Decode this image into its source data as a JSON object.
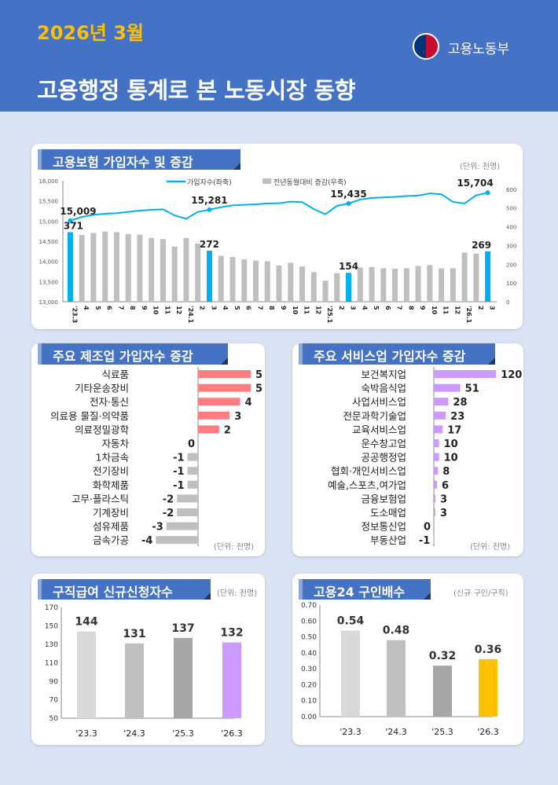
{
  "header": {
    "year": "2026년 3월",
    "title": "고용행정 통계로 본 노동시장 동향",
    "ministry": "고용노동부",
    "logo_icon": "taegeuk-emblem-icon"
  },
  "colors": {
    "header": "#4472c4",
    "year": "#ffc000",
    "line": "#00b0f0",
    "bar_gray": "#bfbfbf",
    "bar_highlight": "#00b0f0",
    "manufacturing_pos": "#ff7c80",
    "services_pos": "#cc99ff",
    "highlight_purple": "#cc99ff",
    "highlight_yellow": "#ffc000"
  },
  "chart_data": [
    {
      "type": "bar+line",
      "title": "고용보험 가입자수 및 증감",
      "unit": "(단위: 천명)",
      "legend": {
        "line": "가입자수(좌축)",
        "bar": "전년동월대비 증감(우축)"
      },
      "categories": [
        "'23.3",
        "4",
        "5",
        "6",
        "7",
        "8",
        "9",
        "10",
        "11",
        "12",
        "'24.1",
        "2",
        "3",
        "4",
        "5",
        "6",
        "7",
        "8",
        "9",
        "10",
        "11",
        "12",
        "'25.1",
        "2",
        "3",
        "4",
        "5",
        "6",
        "7",
        "8",
        "9",
        "10",
        "11",
        "12",
        "'26.1",
        "2",
        "3"
      ],
      "series": [
        {
          "name": "가입자수(좌축)",
          "axis": "left",
          "values": [
            15009,
            15102,
            15155,
            15181,
            15194,
            15227,
            15259,
            15279,
            15292,
            15141,
            15056,
            15227,
            15281,
            15344,
            15390,
            15403,
            15416,
            15436,
            15443,
            15482,
            15469,
            15299,
            15168,
            15377,
            15435,
            15534,
            15573,
            15587,
            15600,
            15619,
            15633,
            15685,
            15665,
            15475,
            15436,
            15639,
            15704
          ]
        },
        {
          "name": "전년동월대비 증감(우축)",
          "axis": "right",
          "values": [
            371,
            356,
            367,
            374,
            371,
            361,
            358,
            340,
            334,
            294,
            340,
            310,
            272,
            245,
            239,
            226,
            219,
            216,
            193,
            208,
            188,
            158,
            112,
            152,
            154,
            182,
            185,
            179,
            176,
            179,
            191,
            196,
            178,
            179,
            262,
            257,
            269
          ]
        }
      ],
      "line_labels": [
        {
          "index": 0,
          "text": "15,009"
        },
        {
          "index": 12,
          "text": "15,281"
        },
        {
          "index": 24,
          "text": "15,435"
        },
        {
          "index": 36,
          "text": "15,704"
        }
      ],
      "bar_labels": [
        {
          "index": 0,
          "text": "371"
        },
        {
          "index": 12,
          "text": "272"
        },
        {
          "index": 24,
          "text": "154"
        },
        {
          "index": 36,
          "text": "269"
        }
      ],
      "highlight_indices": [
        0,
        12,
        24,
        36
      ],
      "left_axis": {
        "range": [
          13000,
          16000
        ],
        "ticks": [
          "13,000",
          "13,500",
          "14,000",
          "14,500",
          "15,000",
          "15,500",
          "16,000"
        ]
      },
      "right_axis": {
        "range": [
          0,
          600
        ],
        "ticks": [
          "0",
          "100",
          "200",
          "300",
          "400",
          "500",
          "600"
        ]
      }
    },
    {
      "type": "bar",
      "orientation": "horizontal",
      "title": "주요 제조업 가입자수 증감",
      "unit": "(단위: 천명)",
      "categories": [
        "식료품",
        "기타운송장비",
        "전자·통신",
        "의료용 물질·의약품",
        "의료정밀광학",
        "자동차",
        "1차금속",
        "전기장비",
        "화학제품",
        "고무·플라스틱",
        "기계장비",
        "섬유제품",
        "금속가공"
      ],
      "values": [
        5,
        5,
        4,
        3,
        2,
        0,
        -1,
        -1,
        -1,
        -2,
        -2,
        -3,
        -4
      ],
      "labels": [
        "5",
        "5",
        "4",
        "3",
        "2",
        "0",
        "-1",
        "-1",
        "-1",
        "-2",
        "-2",
        "-3",
        "-4"
      ]
    },
    {
      "type": "bar",
      "orientation": "horizontal",
      "title": "주요 서비스업 가입자수 증감",
      "unit": "(단위: 천명)",
      "categories": [
        "보건복지업",
        "숙박음식업",
        "사업서비스업",
        "전문과학기술업",
        "교육서비스업",
        "운수창고업",
        "공공행정업",
        "협회·개인서비스업",
        "예술,스포츠,여가업",
        "금융보험업",
        "도소매업",
        "정보통신업",
        "부동산업"
      ],
      "values": [
        120,
        51,
        28,
        23,
        17,
        10,
        10,
        8,
        6,
        3,
        3,
        0,
        -1
      ],
      "labels": [
        "120",
        "51",
        "28",
        "23",
        "17",
        "10",
        "10",
        "8",
        "6",
        "3",
        "3",
        "0",
        "-1"
      ]
    },
    {
      "type": "bar",
      "title": "구직급여 신규신청자수",
      "unit": "(단위: 천명)",
      "categories": [
        "'23.3",
        "'24.3",
        "'25.3",
        "'26.3"
      ],
      "values": [
        144,
        131,
        137,
        132
      ],
      "labels": [
        "144",
        "131",
        "137",
        "132"
      ],
      "colors": [
        "#d9d9d9",
        "#bfbfbf",
        "#a6a6a6",
        "#cc99ff"
      ],
      "ylim": [
        50,
        170
      ],
      "ticks": [
        "50",
        "70",
        "90",
        "110",
        "130",
        "150",
        "170"
      ]
    },
    {
      "type": "bar",
      "title": "고용24 구인배수",
      "unit": "(신규 구인/구직)",
      "categories": [
        "'23.3",
        "'24.3",
        "'25.3",
        "'26.3"
      ],
      "values": [
        0.54,
        0.48,
        0.32,
        0.36
      ],
      "labels": [
        "0.54",
        "0.48",
        "0.32",
        "0.36"
      ],
      "colors": [
        "#d9d9d9",
        "#bfbfbf",
        "#a6a6a6",
        "#ffc000"
      ],
      "ylim": [
        0,
        0.7
      ],
      "ticks": [
        "0.00",
        "0.10",
        "0.20",
        "0.30",
        "0.40",
        "0.50",
        "0.60",
        "0.70"
      ]
    }
  ]
}
